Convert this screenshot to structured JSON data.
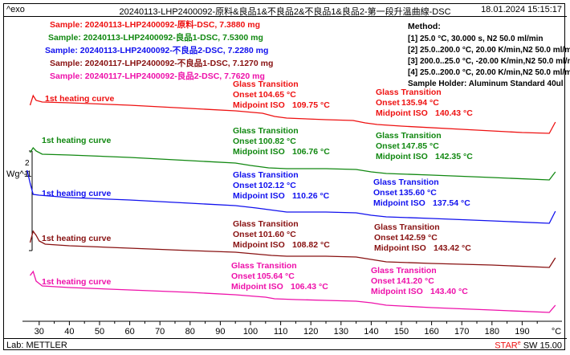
{
  "header": {
    "left": "^exo",
    "title": "20240113-LHP2400092-原料&良品1&不良品2&不良品1&良品2-第一段升溫曲線-DSC",
    "right": "18.01.2024 15:15:17"
  },
  "footer": {
    "left": "Lab: METTLER",
    "right_brand": "STAR",
    "right_reg": "e",
    "right_rest": " SW 15.00"
  },
  "method": {
    "title": "Method:",
    "lines": [
      "[1] 25.0 °C, 30.000 s,  N2 50.0 ml/min",
      "[2] 25.0..200.0 °C, 20.00 K/min,N2 50.0 ml/min",
      "[3] 200.0..25.0 °C, -20.00 K/min,N2 50.0 ml/min",
      "[4] 25.0..200.0 °C, 20.00 K/min,N2 50.0 ml/min",
      "Sample Holder: Aluminum Standard 40ul"
    ]
  },
  "colors": {
    "red": "#ee1111",
    "green": "#118811",
    "blue": "#1111ee",
    "maroon": "#881111",
    "pink": "#ee11aa"
  },
  "chart_data": {
    "type": "line",
    "xlabel": "°C",
    "xlim": [
      25,
      202
    ],
    "x_ticks": [
      30,
      40,
      50,
      60,
      70,
      80,
      90,
      100,
      110,
      120,
      130,
      140,
      150,
      160,
      170,
      180,
      190
    ],
    "ylabel": "Wg^-1",
    "scale_bar": {
      "label_top": "2",
      "label_bottom": "1"
    },
    "legend": [
      {
        "text": "Sample: 20240113-LHP2400092-原料-DSC, 7.3880 mg",
        "color": "#ee1111"
      },
      {
        "text": "Sample: 20240113-LHP2400092-良品1-DSC, 7.5300 mg",
        "color": "#118811"
      },
      {
        "text": "Sample: 20240113-LHP2400092-不良品2-DSC, 7.2280 mg",
        "color": "#1111ee"
      },
      {
        "text": "Sample: 20240117-LHP2400092-不良品1-DSC, 7.1270 mg",
        "color": "#881111"
      },
      {
        "text": "Sample: 20240117-LHP2400092-良品2-DSC, 7.7620 mg",
        "color": "#ee11aa"
      }
    ],
    "series": [
      {
        "label": "1st heating curve",
        "color": "#ee1111",
        "points": [
          [
            27,
            131
          ],
          [
            28,
            119
          ],
          [
            29,
            125
          ],
          [
            31,
            127
          ],
          [
            40,
            128
          ],
          [
            60,
            131
          ],
          [
            80,
            135
          ],
          [
            95,
            138
          ],
          [
            104,
            141
          ],
          [
            108,
            145
          ],
          [
            112,
            147
          ],
          [
            125,
            149
          ],
          [
            134,
            150
          ],
          [
            138,
            153
          ],
          [
            142,
            155
          ],
          [
            150,
            157
          ],
          [
            170,
            161
          ],
          [
            190,
            165
          ],
          [
            199,
            166
          ],
          [
            201,
            152
          ]
        ],
        "transitions": [
          {
            "title": "Glass Transition",
            "onset_label": "Onset",
            "onset": "104.65 °C",
            "mid_label": "Midpoint ISO",
            "mid": "109.75 °C"
          },
          {
            "title": "Glass Transition",
            "onset_label": "Onset",
            "onset": "135.94 °C",
            "mid_label": "Midpoint ISO",
            "mid": "140.43 °C"
          }
        ]
      },
      {
        "label": "1st heating curve",
        "color": "#118811",
        "points": [
          [
            27,
            190
          ],
          [
            28,
            184
          ],
          [
            29,
            188
          ],
          [
            31,
            192
          ],
          [
            40,
            193
          ],
          [
            60,
            196
          ],
          [
            80,
            200
          ],
          [
            95,
            203
          ],
          [
            100,
            206
          ],
          [
            106,
            209
          ],
          [
            112,
            210
          ],
          [
            125,
            210
          ],
          [
            135,
            211
          ],
          [
            140,
            214
          ],
          [
            145,
            216
          ],
          [
            160,
            218
          ],
          [
            180,
            221
          ],
          [
            199,
            224
          ],
          [
            201,
            214
          ]
        ],
        "transitions": [
          {
            "title": "Glass Transition",
            "onset_label": "Onset",
            "onset": "100.82 °C",
            "mid_label": "Midpoint ISO",
            "mid": "106.76 °C"
          },
          {
            "title": "Glass Transition",
            "onset_label": "Onset",
            "onset": "147.85 °C",
            "mid_label": "Midpoint ISO",
            "mid": "142.35 °C"
          }
        ]
      },
      {
        "label": "1st heating curve",
        "color": "#1111ee",
        "points": [
          [
            26,
            212
          ],
          [
            27,
            228
          ],
          [
            28,
            242
          ],
          [
            30,
            243
          ],
          [
            40,
            246
          ],
          [
            60,
            249
          ],
          [
            80,
            253
          ],
          [
            95,
            256
          ],
          [
            102,
            259
          ],
          [
            108,
            262
          ],
          [
            112,
            264
          ],
          [
            125,
            264
          ],
          [
            135,
            265
          ],
          [
            140,
            268
          ],
          [
            145,
            270
          ],
          [
            160,
            272
          ],
          [
            180,
            275
          ],
          [
            199,
            278
          ],
          [
            201,
            263
          ]
        ],
        "transitions": [
          {
            "title": "Glass Transition",
            "onset_label": "Onset",
            "onset": "102.12 °C",
            "mid_label": "Midpoint ISO",
            "mid": "110.26 °C"
          },
          {
            "title": "Glass Transition",
            "onset_label": "Onset",
            "onset": "135.60 °C",
            "mid_label": "Midpoint ISO",
            "mid": "137.54 °C"
          }
        ]
      },
      {
        "label": "1st heating curve",
        "color": "#881111",
        "points": [
          [
            27,
            302
          ],
          [
            28,
            288
          ],
          [
            29,
            293
          ],
          [
            30,
            300
          ],
          [
            32,
            304
          ],
          [
            40,
            306
          ],
          [
            60,
            309
          ],
          [
            80,
            312
          ],
          [
            95,
            314
          ],
          [
            101,
            316
          ],
          [
            107,
            318
          ],
          [
            112,
            319
          ],
          [
            125,
            319
          ],
          [
            135,
            320
          ],
          [
            140,
            323
          ],
          [
            145,
            326
          ],
          [
            160,
            328
          ],
          [
            180,
            330
          ],
          [
            199,
            333
          ],
          [
            201,
            321
          ]
        ],
        "transitions": [
          {
            "title": "Glass Transition",
            "onset_label": "Onset",
            "onset": "101.60 °C",
            "mid_label": "Midpoint ISO",
            "mid": "108.82 °C"
          },
          {
            "title": "Glass Transition",
            "onset_label": "Onset",
            "onset": "142.59 °C",
            "mid_label": "Midpoint ISO",
            "mid": "143.42 °C"
          }
        ]
      },
      {
        "label": "1st heating curve",
        "color": "#ee11aa",
        "points": [
          [
            27,
            343
          ],
          [
            28,
            338
          ],
          [
            29,
            350
          ],
          [
            31,
            356
          ],
          [
            40,
            358
          ],
          [
            60,
            361
          ],
          [
            80,
            364
          ],
          [
            95,
            367
          ],
          [
            105,
            370
          ],
          [
            108,
            372
          ],
          [
            115,
            373
          ],
          [
            125,
            374
          ],
          [
            135,
            375
          ],
          [
            140,
            377
          ],
          [
            145,
            380
          ],
          [
            160,
            383
          ],
          [
            180,
            386
          ],
          [
            199,
            389
          ],
          [
            201,
            380
          ]
        ],
        "transitions": [
          {
            "title": "Glass Transition",
            "onset_label": "Onset",
            "onset": "105.64 °C",
            "mid_label": "Midpoint ISO",
            "mid": "106.43 °C"
          },
          {
            "title": "Glass Transition",
            "onset_label": "Onset",
            "onset": "141.20 °C",
            "mid_label": "Midpoint ISO",
            "mid": "143.40 °C"
          }
        ]
      }
    ]
  }
}
